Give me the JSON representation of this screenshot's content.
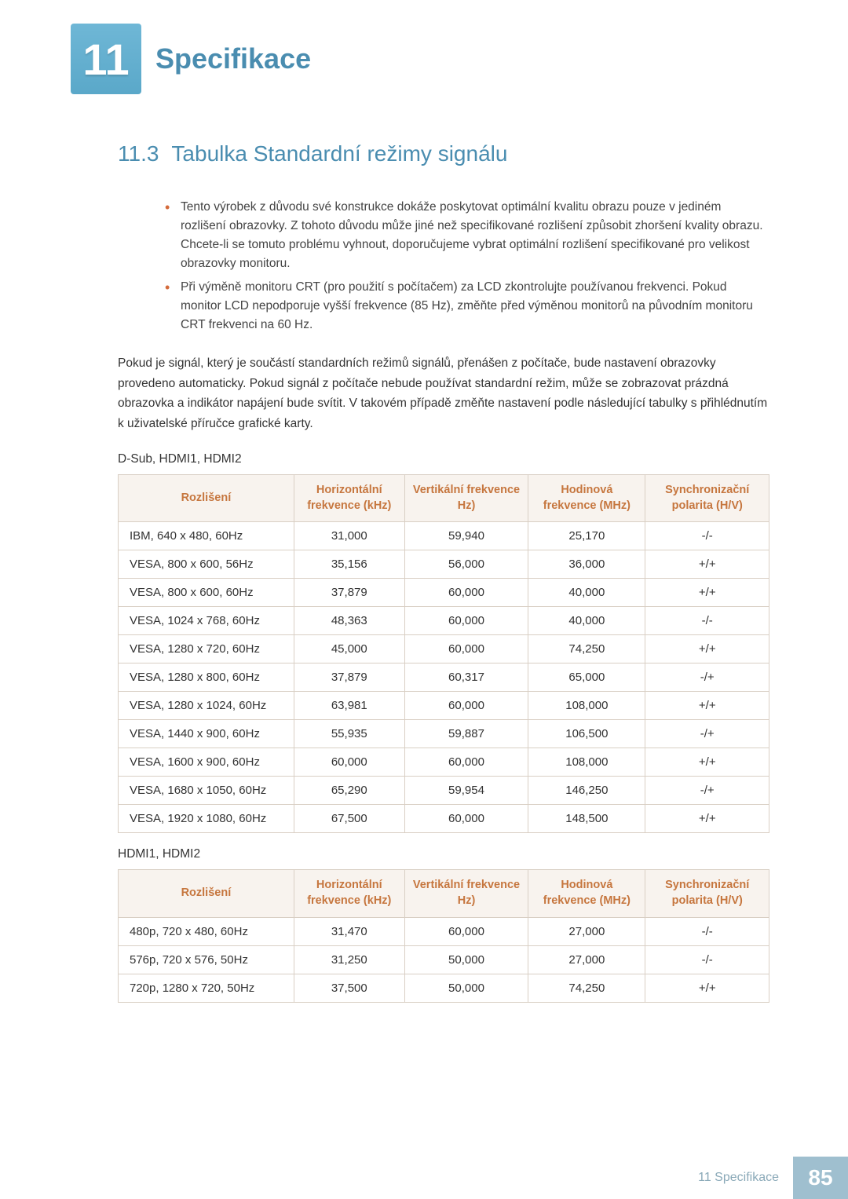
{
  "chapter": {
    "number": "11",
    "title": "Specifikace"
  },
  "section": {
    "number": "11.3",
    "title": "Tabulka Standardní režimy signálu"
  },
  "bullets": [
    "Tento výrobek z důvodu své konstrukce dokáže poskytovat optimální kvalitu obrazu pouze v jediném rozlišení obrazovky. Z tohoto důvodu může jiné než specifikované rozlišení způsobit zhoršení kvality obrazu. Chcete-li se tomuto problému vyhnout, doporučujeme vybrat optimální rozlišení specifikované pro velikost obrazovky monitoru.",
    "Při výměně monitoru CRT (pro použití s počítačem) za LCD zkontrolujte používanou frekvenci. Pokud monitor LCD nepodporuje vyšší frekvence (85 Hz), změňte před výměnou monitorů na původním monitoru CRT frekvenci na 60 Hz."
  ],
  "paragraph": "Pokud je signál, který je součástí standardních režimů signálů, přenášen z počítače, bude nastavení obrazovky provedeno automaticky. Pokud signál z počítače nebude používat standardní režim, může se zobrazovat prázdná obrazovka a indikátor napájení bude svítit. V takovém případě změňte nastavení podle následující tabulky s přihlédnutím k uživatelské příručce grafické karty.",
  "table_headers": {
    "resolution": "Rozlišení",
    "hfreq": "Horizontální frekvence (kHz)",
    "vfreq": "Vertikální frekvence Hz)",
    "clock": "Hodinová frekvence (MHz)",
    "polarity": "Synchronizační polarita (H/V)"
  },
  "table1": {
    "label": "D-Sub, HDMI1, HDMI2",
    "rows": [
      {
        "res": "IBM, 640 x 480, 60Hz",
        "h": "31,000",
        "v": "59,940",
        "c": "25,170",
        "p": "-/-"
      },
      {
        "res": "VESA, 800 x 600, 56Hz",
        "h": "35,156",
        "v": "56,000",
        "c": "36,000",
        "p": "+/+"
      },
      {
        "res": "VESA, 800 x 600, 60Hz",
        "h": "37,879",
        "v": "60,000",
        "c": "40,000",
        "p": "+/+"
      },
      {
        "res": "VESA, 1024 x 768, 60Hz",
        "h": "48,363",
        "v": "60,000",
        "c": "40,000",
        "p": "-/-"
      },
      {
        "res": "VESA, 1280 x 720, 60Hz",
        "h": "45,000",
        "v": "60,000",
        "c": "74,250",
        "p": "+/+"
      },
      {
        "res": "VESA, 1280 x 800, 60Hz",
        "h": "37,879",
        "v": "60,317",
        "c": "65,000",
        "p": "-/+"
      },
      {
        "res": "VESA, 1280 x 1024, 60Hz",
        "h": "63,981",
        "v": "60,000",
        "c": "108,000",
        "p": "+/+"
      },
      {
        "res": "VESA, 1440 x 900, 60Hz",
        "h": "55,935",
        "v": "59,887",
        "c": "106,500",
        "p": "-/+"
      },
      {
        "res": "VESA, 1600 x 900, 60Hz",
        "h": "60,000",
        "v": "60,000",
        "c": "108,000",
        "p": "+/+"
      },
      {
        "res": "VESA, 1680 x 1050, 60Hz",
        "h": "65,290",
        "v": "59,954",
        "c": "146,250",
        "p": "-/+"
      },
      {
        "res": "VESA, 1920 x 1080, 60Hz",
        "h": "67,500",
        "v": "60,000",
        "c": "148,500",
        "p": "+/+"
      }
    ]
  },
  "table2": {
    "label": "HDMI1, HDMI2",
    "rows": [
      {
        "res": "480p, 720 x 480, 60Hz",
        "h": "31,470",
        "v": "60,000",
        "c": "27,000",
        "p": "-/-"
      },
      {
        "res": "576p, 720 x 576, 50Hz",
        "h": "31,250",
        "v": "50,000",
        "c": "27,000",
        "p": "-/-"
      },
      {
        "res": "720p, 1280 x 720, 50Hz",
        "h": "37,500",
        "v": "50,000",
        "c": "74,250",
        "p": "+/+"
      }
    ]
  },
  "footer": {
    "label": "11 Specifikace",
    "page": "85"
  },
  "colors": {
    "accent_blue": "#4a8db0",
    "badge_gradient_top": "#6fb7d6",
    "badge_gradient_bottom": "#5aa8c9",
    "th_bg": "#f8f3ee",
    "th_text": "#c6763e",
    "border": "#d9cfc4",
    "bullet": "#d46a3a",
    "footer_text": "#8aa9b8",
    "footer_bg": "#9fbfcf"
  }
}
